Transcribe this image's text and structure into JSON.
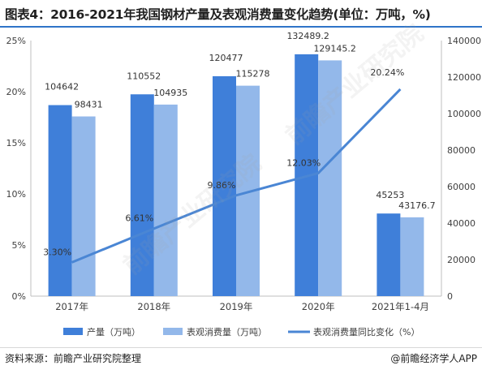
{
  "title": "图表4：2016-2021年我国钢材产量及表观消费量变化趋势(单位：万吨，%)",
  "source": "资料来源：前瞻产业研究院整理",
  "brand": "@前瞻经济学人APP",
  "watermark_text": "前瞻产业研究院",
  "colors": {
    "production": "#3f7fd9",
    "consumption": "#93b8ea",
    "line": "#4a86d4",
    "accent": "#2f74c8"
  },
  "chart_data": {
    "type": "bar",
    "categories": [
      "2017年",
      "2018年",
      "2019年",
      "2020年",
      "2021年1-4月"
    ],
    "series": [
      {
        "name": "产量（万吨）",
        "axis": "right",
        "values": [
          104642,
          110552,
          120477,
          132489.2,
          45253
        ]
      },
      {
        "name": "表观消费量（万吨）",
        "axis": "right",
        "values": [
          98431,
          104935,
          115278,
          129145.2,
          43176.7
        ]
      },
      {
        "name": "表观消费量同比变化（%）",
        "type": "line",
        "axis": "left",
        "values": [
          3.3,
          6.61,
          9.86,
          12.03,
          20.24
        ]
      }
    ],
    "data_labels": {
      "production": [
        "104642",
        "110552",
        "120477",
        "132489.2",
        "45253"
      ],
      "consumption": [
        "98431",
        "104935",
        "115278",
        "129145.2",
        "43176.7"
      ],
      "line": [
        "3.30%",
        "6.61%",
        "9.86%",
        "12.03%",
        "20.24%"
      ]
    },
    "left_axis": {
      "ylim": [
        0,
        25
      ],
      "ticks": [
        "0%",
        "5%",
        "10%",
        "15%",
        "20%",
        "25%"
      ]
    },
    "right_axis": {
      "ylim": [
        0,
        140000
      ],
      "ticks": [
        "0",
        "20000",
        "40000",
        "60000",
        "80000",
        "100000",
        "120000",
        "140000"
      ]
    },
    "grid": false,
    "legend_position": "bottom"
  }
}
